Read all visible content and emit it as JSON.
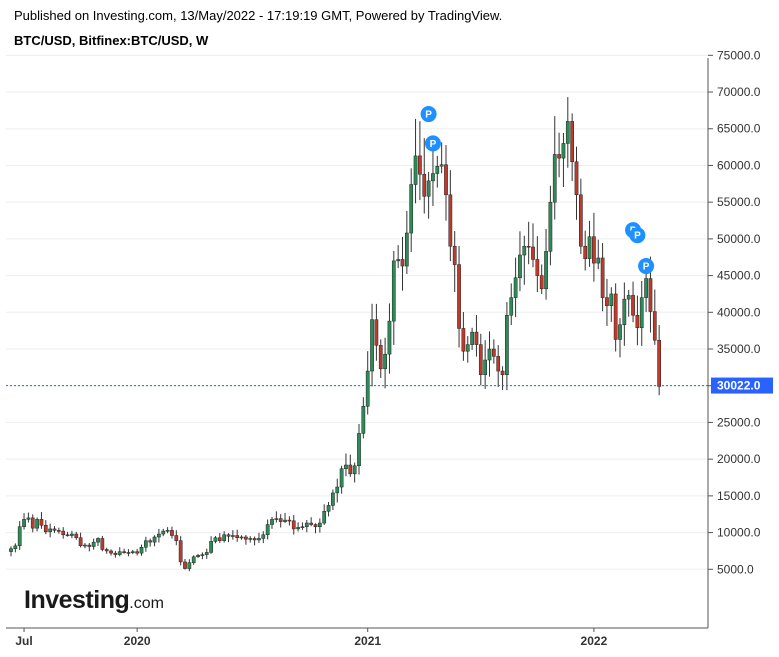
{
  "header": {
    "published": "Published on Investing.com, 13/May/2022 - 17:19:19 GMT, Powered by TradingView.",
    "symbol": "BTC/USD, Bitfinex:BTC/USD, W"
  },
  "brand": {
    "main": "Investing",
    "suffix": ".com"
  },
  "colors": {
    "up_fill": "#2e8b57",
    "down_fill": "#c0392b",
    "wick": "#333333",
    "grid": "#eeeeee",
    "axis": "#555555",
    "price_line": "#2962ff",
    "price_tag": "#2962ff",
    "marker": "#1e90ff"
  },
  "chart_data": {
    "type": "candlestick",
    "timeframe": "W",
    "yaxis_position": "right",
    "ylim": [
      0,
      77000
    ],
    "yticks": [
      "75000.0",
      "70000.0",
      "65000.0",
      "60000.0",
      "55000.0",
      "50000.0",
      "45000.0",
      "40000.0",
      "35000.0",
      "30000.0",
      "25000.0",
      "20000.0",
      "15000.0",
      "10000.0",
      "5000.0"
    ],
    "ytick_values": [
      75000,
      70000,
      65000,
      60000,
      55000,
      50000,
      45000,
      40000,
      35000,
      30000,
      25000,
      20000,
      15000,
      10000,
      5000
    ],
    "xticks": [
      {
        "label": "Jul",
        "index": 3
      },
      {
        "label": "2020",
        "index": 29
      },
      {
        "label": "2021",
        "index": 82
      },
      {
        "label": "2022",
        "index": 134
      }
    ],
    "current_price": 30022.0,
    "current_price_label": "30022.0",
    "grid": true,
    "markers": [
      {
        "label": "P",
        "index": 96,
        "price": 67000
      },
      {
        "label": "P",
        "index": 97,
        "price": 63000
      },
      {
        "label": "P",
        "index": 143,
        "price": 51200
      },
      {
        "label": "P",
        "index": 144,
        "price": 50500
      },
      {
        "label": "P",
        "index": 146,
        "price": 46300
      }
    ],
    "closes": [
      7800,
      8200,
      10800,
      11800,
      12000,
      10600,
      11800,
      11000,
      10100,
      10500,
      10300,
      10200,
      9700,
      9600,
      9800,
      9300,
      8200,
      8300,
      8100,
      8700,
      9200,
      7700,
      7500,
      7200,
      7000,
      7400,
      7300,
      7300,
      7400,
      7200,
      8000,
      8900,
      8700,
      9400,
      9800,
      10200,
      10300,
      9600,
      8900,
      6000,
      5100,
      5900,
      6700,
      6900,
      7000,
      7300,
      8800,
      9300,
      8900,
      9700,
      9500,
      9600,
      9300,
      9400,
      9100,
      9200,
      9000,
      9200,
      9700,
      11100,
      11800,
      11900,
      11500,
      11700,
      11600,
      10500,
      10700,
      10800,
      11300,
      11100,
      10800,
      11300,
      12900,
      13700,
      15400,
      16200,
      18700,
      19200,
      18000,
      19100,
      23500,
      27200,
      32000,
      39000,
      35500,
      32300,
      34300,
      38800,
      47000,
      47200,
      46300,
      50800,
      57400,
      61300,
      58800,
      55800,
      57900,
      58900,
      59900,
      60100,
      56000,
      49000,
      46500,
      37800,
      34700,
      35600,
      37300,
      35600,
      31500,
      33500,
      35000,
      34000,
      32000,
      31500,
      39600,
      42000,
      44700,
      47800,
      49000,
      48900,
      47200,
      45000,
      43200,
      48300,
      55000,
      61500,
      61000,
      63000,
      66000,
      60500,
      56000,
      49000,
      47300,
      50300,
      46700,
      47400,
      42000,
      40900,
      42500,
      36300,
      38300,
      41800,
      42300,
      39600,
      37900,
      42000,
      44600,
      40100,
      36200,
      29900
    ]
  }
}
